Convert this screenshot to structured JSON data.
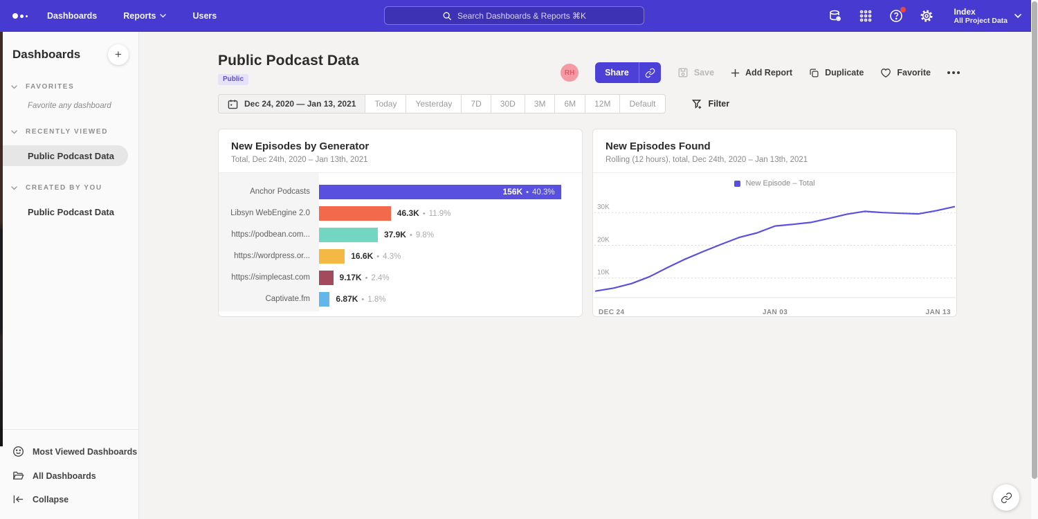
{
  "nav": {
    "items": [
      {
        "label": "Dashboards"
      },
      {
        "label": "Reports",
        "has_dropdown": true
      },
      {
        "label": "Users"
      }
    ],
    "search_placeholder": "Search Dashboards & Reports ⌘K",
    "project": {
      "name": "Index",
      "subtitle": "All Project Data"
    }
  },
  "sidebar": {
    "title": "Dashboards",
    "add_label": "+",
    "sections": [
      {
        "label": "FAVORITES",
        "empty_text": "Favorite any dashboard"
      },
      {
        "label": "RECENTLY VIEWED",
        "item": "Public Podcast Data"
      },
      {
        "label": "CREATED BY YOU",
        "item": "Public Podcast Data"
      }
    ],
    "footer": {
      "most_viewed": "Most Viewed Dashboards",
      "all_dashboards": "All Dashboards",
      "collapse": "Collapse"
    }
  },
  "header": {
    "title": "Public Podcast Data",
    "badge": "Public",
    "avatar_initials": "RH",
    "share_label": "Share",
    "save_label": "Save",
    "add_report_label": "Add Report",
    "add_plus": "+",
    "duplicate_label": "Duplicate",
    "favorite_label": "Favorite"
  },
  "daterange": {
    "range_label": "Dec 24, 2020 — Jan 13, 2021",
    "presets": [
      "Today",
      "Yesterday",
      "7D",
      "30D",
      "3M",
      "6M",
      "12M",
      "Default"
    ],
    "filter_label": "Filter"
  },
  "chart_data": [
    {
      "type": "bar",
      "orientation": "horizontal",
      "title": "New Episodes by Generator",
      "subtitle": "Total, Dec 24th, 2020 – Jan 13th, 2021",
      "categories": [
        "Anchor Podcasts",
        "Libsyn WebEngine 2.0",
        "https://podbean.com...",
        "https://wordpress.or...",
        "https://simplecast.com",
        "Captivate.fm"
      ],
      "values": [
        156000,
        46300,
        37900,
        16600,
        9170,
        6870
      ],
      "value_labels": [
        "156K",
        "46.3K",
        "37.9K",
        "16.6K",
        "9.17K",
        "6.87K"
      ],
      "pct_labels": [
        "40.3%",
        "11.9%",
        "9.8%",
        "4.3%",
        "2.4%",
        "1.8%"
      ],
      "separator": "•",
      "colors": [
        "#5a50df",
        "#f2694c",
        "#72d6c3",
        "#f4b844",
        "#a34a5d",
        "#62b7ea"
      ],
      "xmax": 156000
    },
    {
      "type": "line",
      "title": "New Episodes Found",
      "subtitle": "Rolling (12 hours), total, Dec 24th, 2020 – Jan 13th, 2021",
      "legend": [
        {
          "label": "New Episode – Total",
          "color": "#5a50df"
        }
      ],
      "color": "#5a50df",
      "grid": "dotted-horizontal",
      "x_ticks": [
        "DEC 24",
        "JAN 03",
        "JAN 13"
      ],
      "y_ticks": [
        "10K",
        "20K",
        "30K"
      ],
      "y_tick_values": [
        10000,
        20000,
        30000
      ],
      "ylim": [
        4000,
        34500
      ],
      "x": [
        "Dec 24",
        "Dec 25",
        "Dec 26",
        "Dec 27",
        "Dec 28",
        "Dec 29",
        "Dec 30",
        "Dec 31",
        "Jan 1",
        "Jan 2",
        "Jan 3",
        "Jan 4",
        "Jan 5",
        "Jan 6",
        "Jan 7",
        "Jan 8",
        "Jan 9",
        "Jan 10",
        "Jan 11",
        "Jan 12",
        "Jan 13"
      ],
      "values": [
        6000,
        6900,
        8300,
        10400,
        13200,
        15800,
        18100,
        20300,
        22400,
        23800,
        25900,
        26400,
        27000,
        28200,
        29500,
        30400,
        30000,
        29800,
        29600,
        30600,
        31800
      ]
    }
  ]
}
